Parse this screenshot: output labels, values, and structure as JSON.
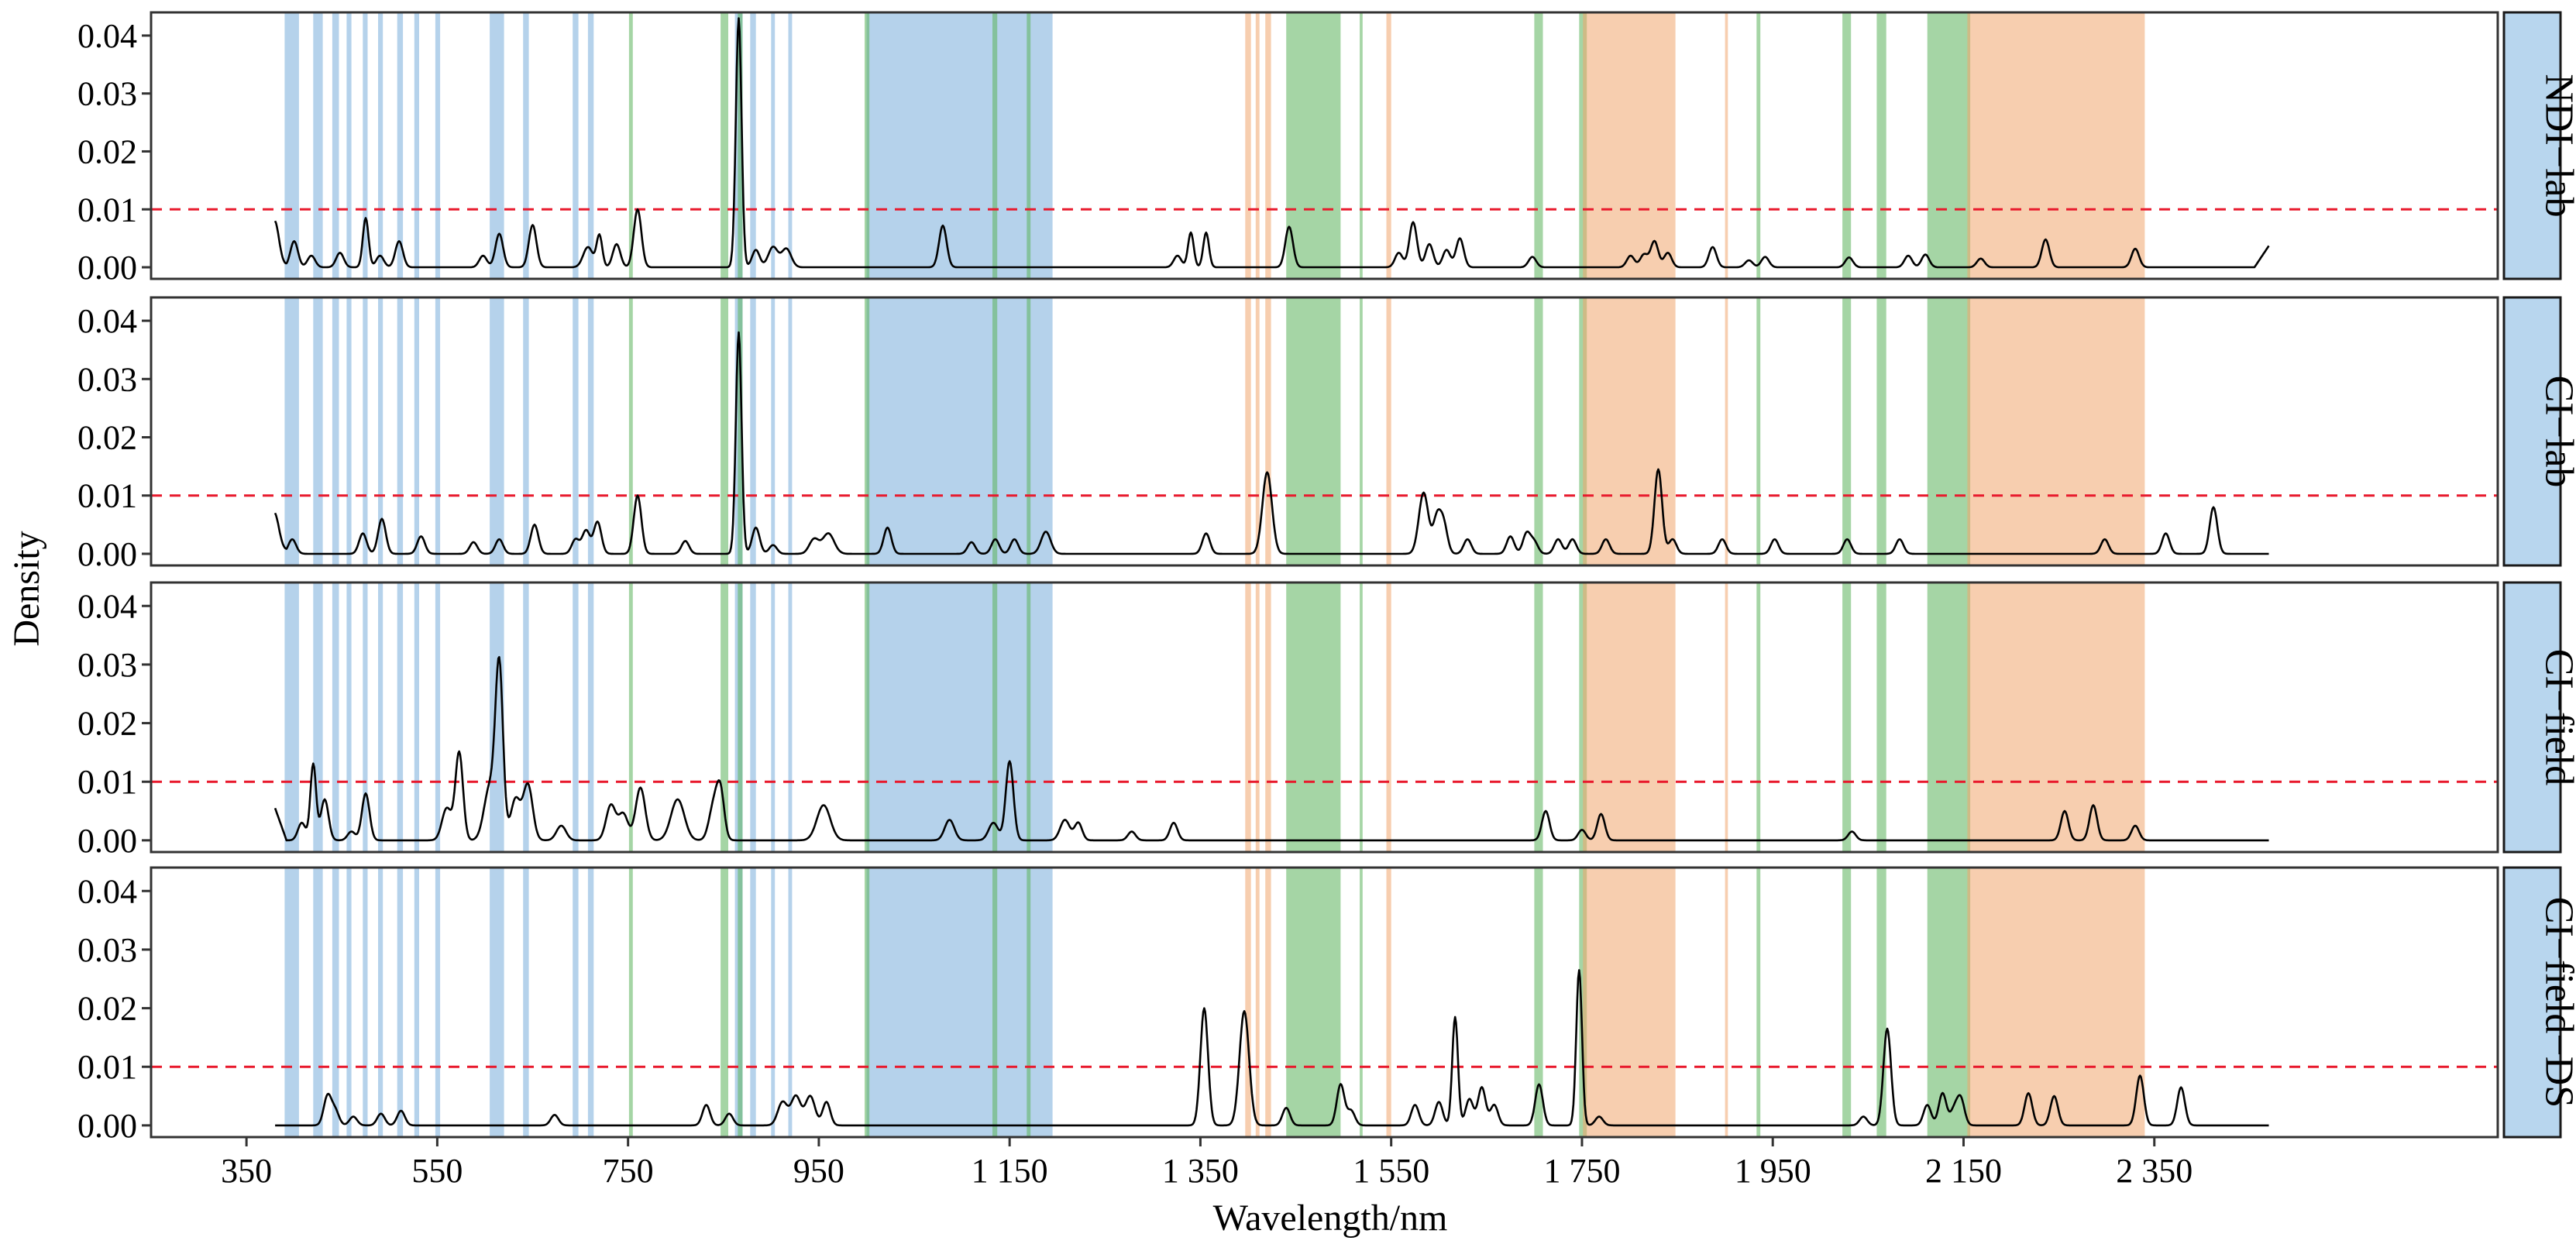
{
  "chart_data": {
    "type": "line",
    "xlabel": "Wavelength/nm",
    "ylabel": "Density",
    "xlim": [
      250,
      2710
    ],
    "ylim": [
      -0.002,
      0.044
    ],
    "x_ticks": [
      350,
      550,
      750,
      950,
      1150,
      1350,
      1550,
      1750,
      1950,
      2150,
      2350
    ],
    "x_tick_labels": [
      "350",
      "550",
      "750",
      "950",
      "1 150",
      "1 350",
      "1 550",
      "1 750",
      "1 950",
      "2 150",
      "2 350"
    ],
    "y_ticks": [
      0.0,
      0.01,
      0.02,
      0.03,
      0.04
    ],
    "y_tick_labels": [
      "0.00",
      "0.01",
      "0.02",
      "0.03",
      "0.04"
    ],
    "threshold": 0.01,
    "grid": false,
    "colors": {
      "line": "#000000",
      "threshold": "#e8192c",
      "blue_band": "#7fb2dc",
      "green_band": "#5bb25b",
      "orange_band": "#f0a56e",
      "strip_fill": "#b8d6ee"
    },
    "bands": {
      "blue": [
        [
          390,
          405
        ],
        [
          420,
          430
        ],
        [
          440,
          447
        ],
        [
          455,
          460
        ],
        [
          472,
          477
        ],
        [
          488,
          493
        ],
        [
          508,
          514
        ],
        [
          526,
          531
        ],
        [
          548,
          553
        ],
        [
          605,
          620
        ],
        [
          640,
          646
        ],
        [
          692,
          698
        ],
        [
          708,
          714
        ],
        [
          862,
          870
        ],
        [
          878,
          884
        ],
        [
          900,
          904
        ],
        [
          918,
          922
        ],
        [
          1000,
          1195
        ]
      ],
      "green": [
        [
          751,
          755
        ],
        [
          847,
          855
        ],
        [
          865,
          870
        ],
        [
          998,
          1003
        ],
        [
          1132,
          1137
        ],
        [
          1168,
          1172
        ],
        [
          1440,
          1497
        ],
        [
          1517,
          1520
        ],
        [
          1700,
          1709
        ],
        [
          1747,
          1755
        ],
        [
          1933,
          1937
        ],
        [
          2023,
          2032
        ],
        [
          2059,
          2069
        ],
        [
          2112,
          2157
        ]
      ],
      "orange": [
        [
          1397,
          1403
        ],
        [
          1408,
          1412
        ],
        [
          1418,
          1424
        ],
        [
          1545,
          1550
        ],
        [
          1751,
          1848
        ],
        [
          1900,
          1903
        ],
        [
          2154,
          2340
        ]
      ]
    },
    "panels": [
      {
        "label": "NDI−lab",
        "baseline": 0.0,
        "start": 0.0025,
        "end": 0.0037,
        "peaks": [
          [
            380,
            0.0055,
            4
          ],
          [
            400,
            0.0045,
            4
          ],
          [
            418,
            0.002,
            4
          ],
          [
            448,
            0.0025,
            4
          ],
          [
            475,
            0.0085,
            3
          ],
          [
            490,
            0.002,
            4
          ],
          [
            510,
            0.0045,
            4
          ],
          [
            598,
            0.002,
            4
          ],
          [
            615,
            0.0058,
            4
          ],
          [
            650,
            0.0073,
            4
          ],
          [
            708,
            0.0035,
            5
          ],
          [
            720,
            0.0055,
            3
          ],
          [
            738,
            0.004,
            4
          ],
          [
            760,
            0.01,
            4
          ],
          [
            866,
            0.043,
            3
          ],
          [
            884,
            0.003,
            4
          ],
          [
            902,
            0.0035,
            5
          ],
          [
            916,
            0.0032,
            5
          ],
          [
            1080,
            0.0072,
            4
          ],
          [
            1326,
            0.002,
            4
          ],
          [
            1340,
            0.006,
            3
          ],
          [
            1356,
            0.006,
            3
          ],
          [
            1443,
            0.007,
            4
          ],
          [
            1558,
            0.0025,
            4
          ],
          [
            1573,
            0.0078,
            4
          ],
          [
            1590,
            0.004,
            4
          ],
          [
            1608,
            0.003,
            4
          ],
          [
            1622,
            0.005,
            4
          ],
          [
            1698,
            0.0018,
            4
          ],
          [
            1801,
            0.002,
            4
          ],
          [
            1815,
            0.0022,
            4
          ],
          [
            1826,
            0.0045,
            4
          ],
          [
            1840,
            0.0025,
            4
          ],
          [
            1887,
            0.0035,
            4
          ],
          [
            1925,
            0.0012,
            4
          ],
          [
            1942,
            0.0018,
            4
          ],
          [
            2030,
            0.0017,
            4
          ],
          [
            2092,
            0.002,
            4
          ],
          [
            2110,
            0.0022,
            4
          ],
          [
            2168,
            0.0015,
            4
          ],
          [
            2236,
            0.0048,
            4
          ],
          [
            2330,
            0.0032,
            4
          ]
        ]
      },
      {
        "label": "CI−lab",
        "baseline": 0.0,
        "start": 0.0035,
        "end": 0.0,
        "peaks": [
          [
            380,
            0.0035,
            4
          ],
          [
            398,
            0.0025,
            4
          ],
          [
            472,
            0.0035,
            4
          ],
          [
            492,
            0.006,
            4
          ],
          [
            533,
            0.003,
            4
          ],
          [
            588,
            0.002,
            4
          ],
          [
            615,
            0.0025,
            4
          ],
          [
            652,
            0.005,
            4
          ],
          [
            695,
            0.0025,
            4
          ],
          [
            706,
            0.004,
            4
          ],
          [
            718,
            0.0055,
            4
          ],
          [
            760,
            0.01,
            4
          ],
          [
            810,
            0.0022,
            4
          ],
          [
            866,
            0.038,
            3
          ],
          [
            884,
            0.0045,
            4
          ],
          [
            902,
            0.0015,
            4
          ],
          [
            945,
            0.0025,
            5
          ],
          [
            960,
            0.0035,
            6
          ],
          [
            1022,
            0.0045,
            4
          ],
          [
            1110,
            0.002,
            4
          ],
          [
            1135,
            0.0025,
            4
          ],
          [
            1155,
            0.0025,
            4
          ],
          [
            1188,
            0.0038,
            5
          ],
          [
            1356,
            0.0035,
            4
          ],
          [
            1420,
            0.014,
            5
          ],
          [
            1584,
            0.0105,
            5
          ],
          [
            1598,
            0.006,
            4
          ],
          [
            1605,
            0.005,
            4
          ],
          [
            1630,
            0.0025,
            4
          ],
          [
            1675,
            0.003,
            4
          ],
          [
            1692,
            0.0035,
            4
          ],
          [
            1700,
            0.002,
            4
          ],
          [
            1725,
            0.0025,
            4
          ],
          [
            1740,
            0.0025,
            4
          ],
          [
            1775,
            0.0025,
            4
          ],
          [
            1830,
            0.0145,
            4
          ],
          [
            1845,
            0.0025,
            4
          ],
          [
            1897,
            0.0025,
            4
          ],
          [
            1952,
            0.0025,
            4
          ],
          [
            2028,
            0.0025,
            4
          ],
          [
            2083,
            0.0025,
            4
          ],
          [
            2298,
            0.0025,
            4
          ],
          [
            2362,
            0.0035,
            4
          ],
          [
            2412,
            0.008,
            4
          ]
        ]
      },
      {
        "label": "CI−field",
        "baseline": 0.0,
        "start": 0.0055,
        "end": 0.0,
        "peaks": [
          [
            408,
            0.003,
            4
          ],
          [
            420,
            0.013,
            3
          ],
          [
            432,
            0.007,
            4
          ],
          [
            460,
            0.0015,
            4
          ],
          [
            475,
            0.008,
            4
          ],
          [
            560,
            0.0055,
            5
          ],
          [
            573,
            0.015,
            4
          ],
          [
            605,
            0.009,
            6
          ],
          [
            615,
            0.029,
            4
          ],
          [
            632,
            0.007,
            5
          ],
          [
            645,
            0.0095,
            5
          ],
          [
            680,
            0.0025,
            5
          ],
          [
            732,
            0.006,
            5
          ],
          [
            745,
            0.0045,
            5
          ],
          [
            763,
            0.009,
            5
          ],
          [
            802,
            0.007,
            7
          ],
          [
            840,
            0.006,
            5
          ],
          [
            847,
            0.0075,
            4
          ],
          [
            955,
            0.006,
            7
          ],
          [
            1087,
            0.0035,
            5
          ],
          [
            1133,
            0.003,
            5
          ],
          [
            1150,
            0.0135,
            4
          ],
          [
            1208,
            0.0035,
            5
          ],
          [
            1222,
            0.003,
            4
          ],
          [
            1278,
            0.0015,
            4
          ],
          [
            1322,
            0.003,
            4
          ],
          [
            1712,
            0.005,
            4
          ],
          [
            1750,
            0.0018,
            4
          ],
          [
            1770,
            0.0045,
            4
          ],
          [
            2033,
            0.0015,
            4
          ],
          [
            2256,
            0.005,
            4
          ],
          [
            2286,
            0.006,
            4
          ],
          [
            2330,
            0.0025,
            4
          ]
        ]
      },
      {
        "label": "CI−field−DS",
        "baseline": 0.0,
        "start": 0.0,
        "end": 0.0,
        "peaks": [
          [
            435,
            0.005,
            4
          ],
          [
            443,
            0.0025,
            4
          ],
          [
            462,
            0.0015,
            4
          ],
          [
            491,
            0.002,
            4
          ],
          [
            512,
            0.0025,
            4
          ],
          [
            673,
            0.0018,
            4
          ],
          [
            832,
            0.0035,
            4
          ],
          [
            856,
            0.002,
            4
          ],
          [
            912,
            0.004,
            5
          ],
          [
            926,
            0.005,
            5
          ],
          [
            941,
            0.005,
            5
          ],
          [
            958,
            0.004,
            4
          ],
          [
            1354,
            0.02,
            4
          ],
          [
            1396,
            0.0195,
            5
          ],
          [
            1440,
            0.003,
            4
          ],
          [
            1497,
            0.007,
            4
          ],
          [
            1508,
            0.0025,
            4
          ],
          [
            1575,
            0.0035,
            4
          ],
          [
            1600,
            0.004,
            4
          ],
          [
            1617,
            0.0185,
            3
          ],
          [
            1632,
            0.0045,
            4
          ],
          [
            1645,
            0.0065,
            4
          ],
          [
            1658,
            0.0035,
            4
          ],
          [
            1705,
            0.007,
            4
          ],
          [
            1747,
            0.0265,
            3
          ],
          [
            1768,
            0.0015,
            4
          ],
          [
            2045,
            0.0015,
            4
          ],
          [
            2070,
            0.0165,
            4
          ],
          [
            2112,
            0.0035,
            4
          ],
          [
            2128,
            0.0055,
            4
          ],
          [
            2140,
            0.0025,
            4
          ],
          [
            2147,
            0.0045,
            4
          ],
          [
            2218,
            0.0055,
            4
          ],
          [
            2245,
            0.005,
            4
          ],
          [
            2335,
            0.0085,
            4
          ],
          [
            2378,
            0.0065,
            4
          ]
        ]
      }
    ]
  }
}
